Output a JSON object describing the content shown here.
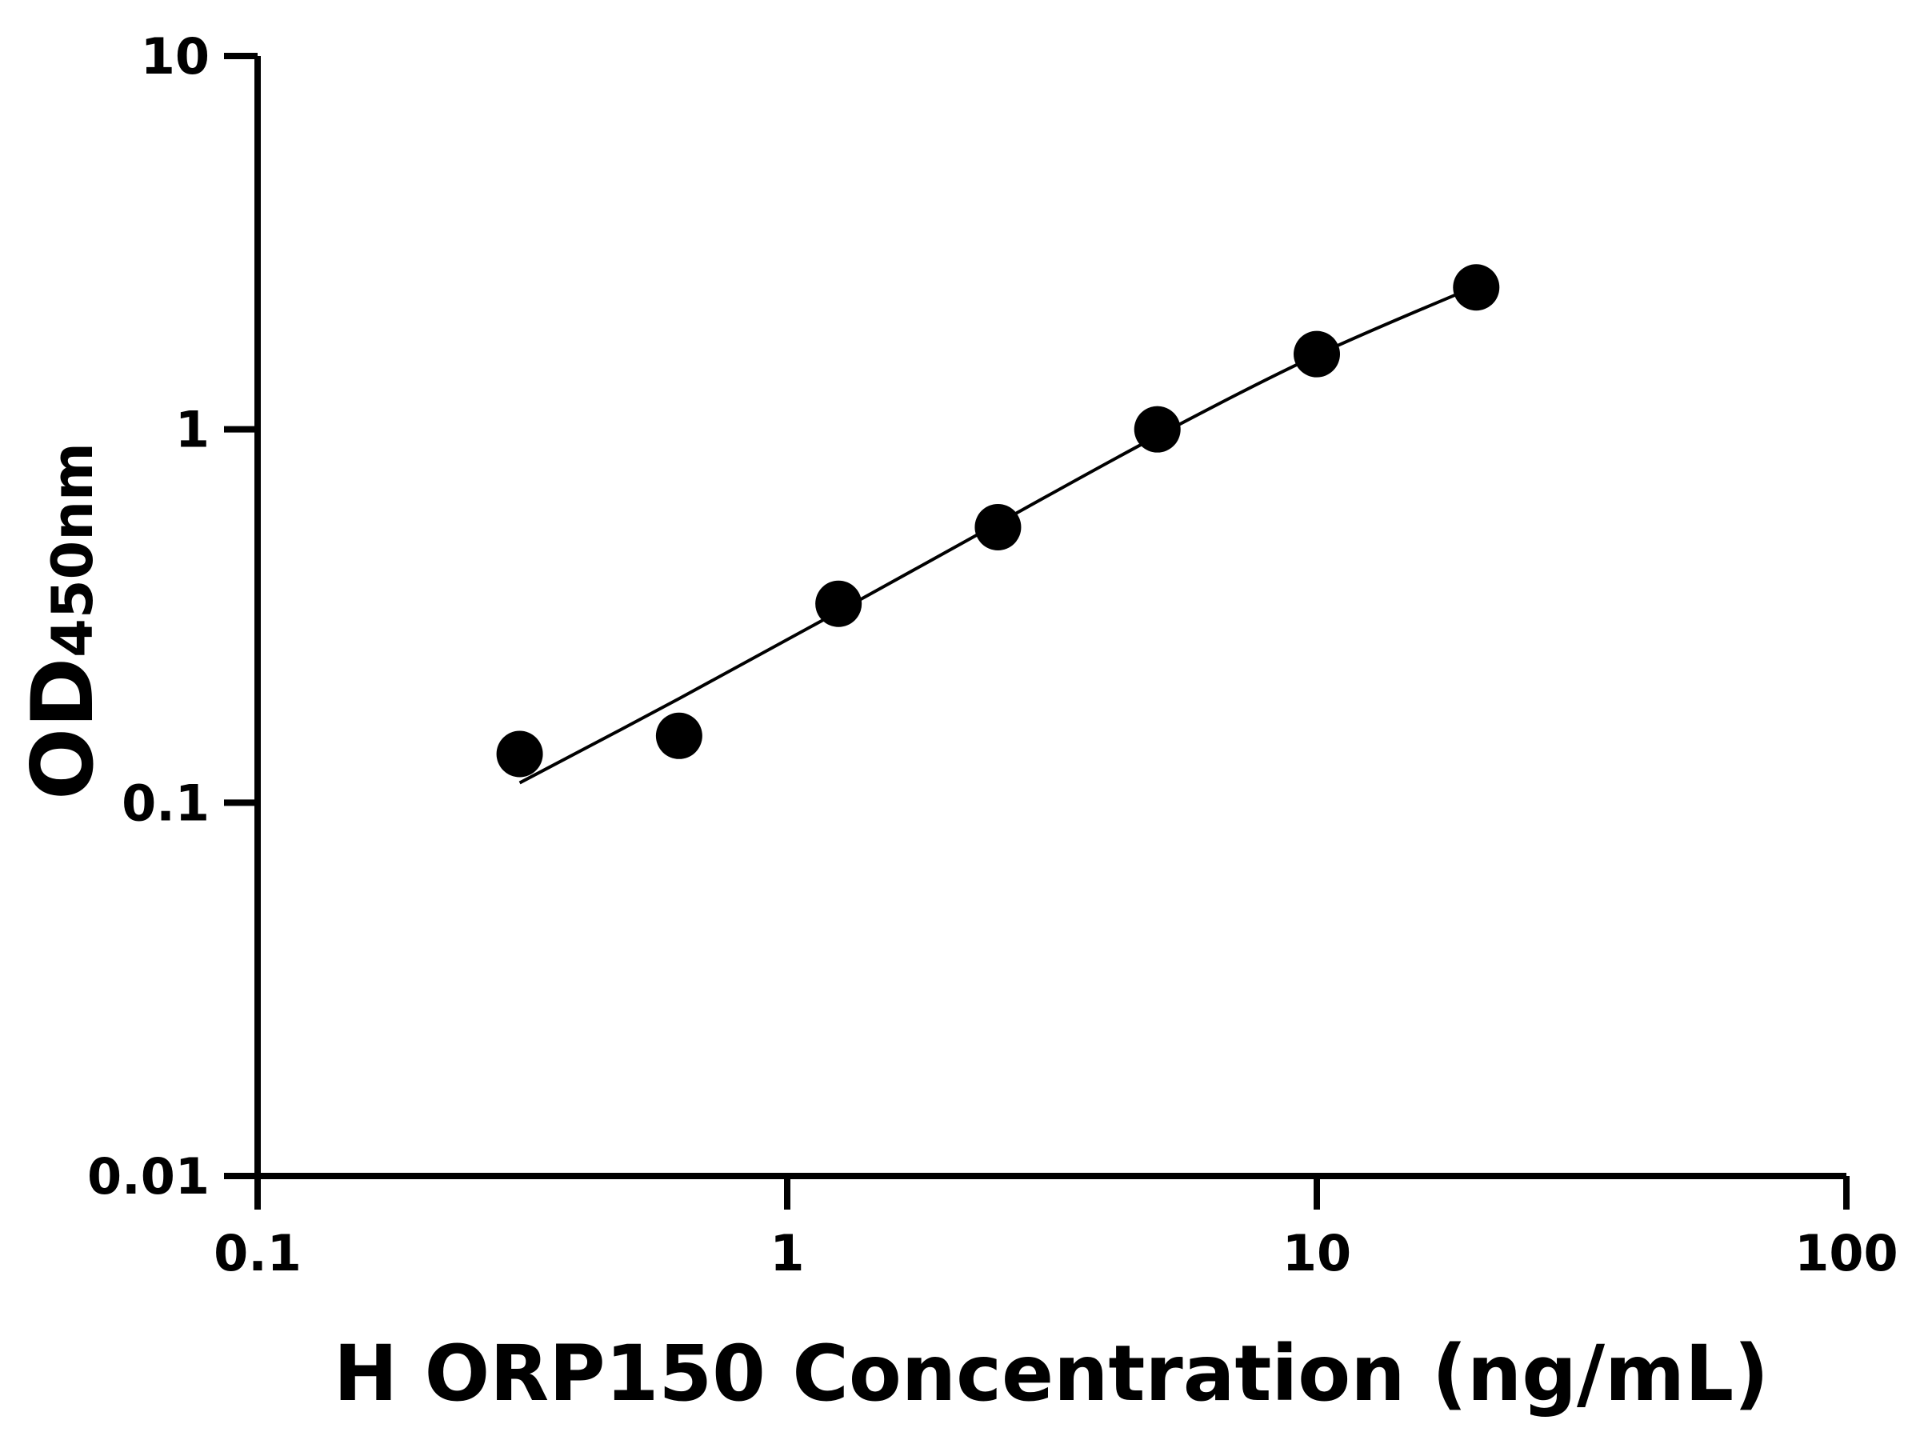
{
  "chart_data": {
    "type": "scatter",
    "xlabel": "H ORP150 Concentration (ng/mL)",
    "ylabel_main": "OD",
    "ylabel_sub": "450nm",
    "x_scale": "log",
    "y_scale": "log",
    "xlim": [
      0.1,
      100
    ],
    "ylim": [
      0.01,
      10
    ],
    "x_ticks": [
      "0.1",
      "1",
      "10",
      "100"
    ],
    "y_ticks": [
      "0.01",
      "0.1",
      "1",
      "10"
    ],
    "grid": false,
    "colors": {
      "points": "#000000",
      "fit": "#000000"
    },
    "series": [
      {
        "kind": "points",
        "x": [
          0.3125,
          0.625,
          1.25,
          2.5,
          5,
          10,
          20
        ],
        "y": [
          0.135,
          0.151,
          0.341,
          0.547,
          1.0,
          1.59,
          2.4
        ]
      },
      {
        "kind": "fit-curve",
        "x": [
          0.3125,
          0.625,
          1.25,
          2.5,
          5,
          10,
          20
        ],
        "y": [
          0.113,
          0.19,
          0.325,
          0.56,
          0.96,
          1.58,
          2.42
        ]
      }
    ]
  }
}
